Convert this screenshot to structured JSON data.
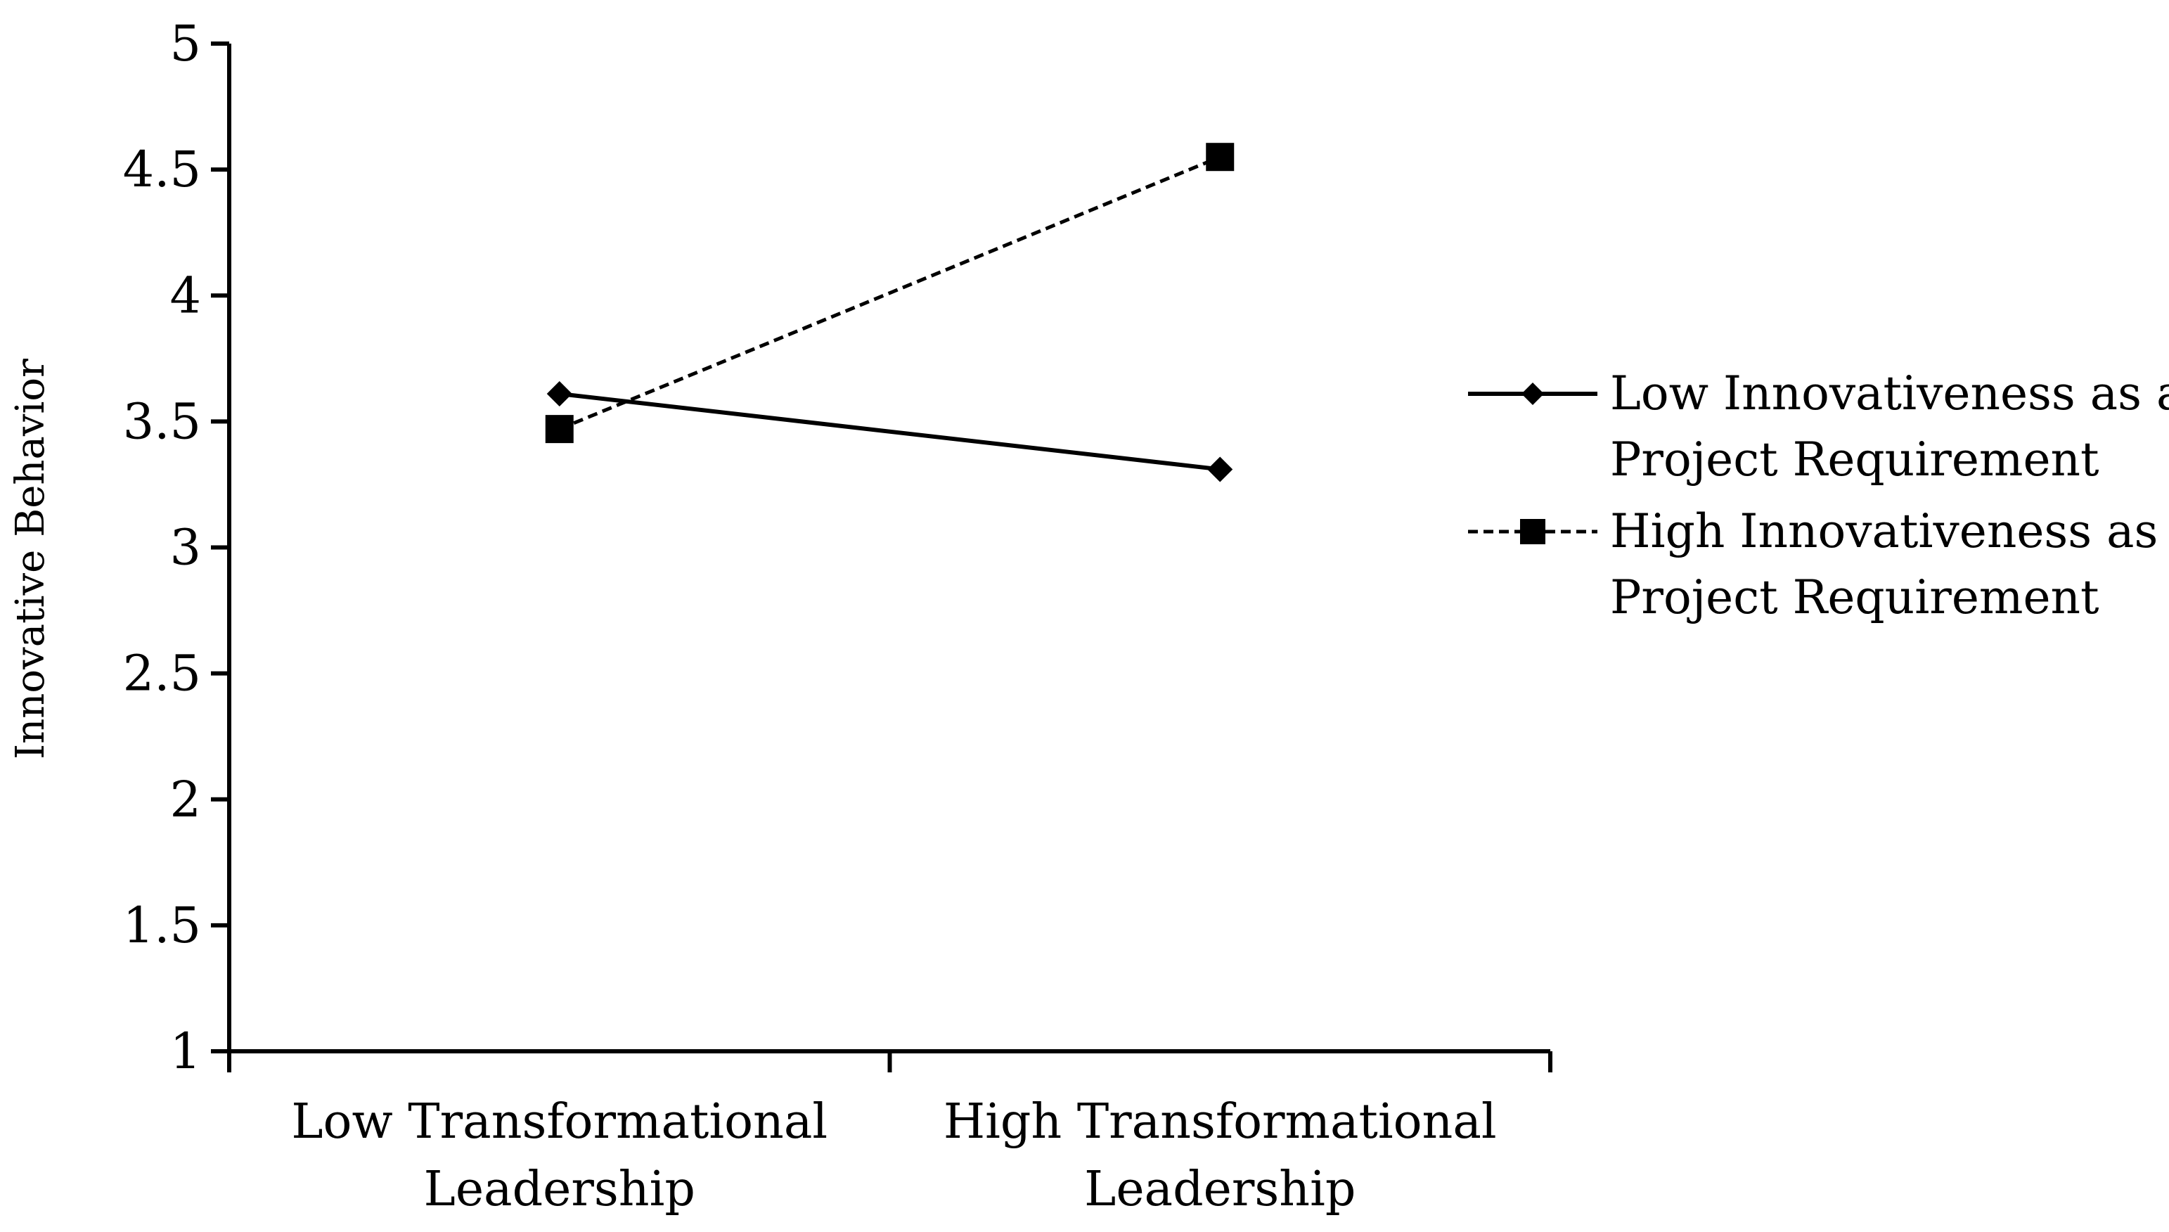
{
  "chart_data": {
    "type": "line",
    "title": "",
    "xlabel": "",
    "ylabel": "Innovative Behavior",
    "ylim": [
      1,
      5
    ],
    "yticks": [
      "1",
      "1.5",
      "2",
      "2.5",
      "3",
      "3.5",
      "4",
      "4.5",
      "5"
    ],
    "categories": [
      [
        "Low Transformational",
        "Leadership"
      ],
      [
        "High Transformational",
        "Leadership"
      ]
    ],
    "grid": false,
    "legend_position": "right",
    "series": [
      {
        "name": [
          "Low Innovativeness as a",
          "Project Requirement"
        ],
        "values": [
          3.61,
          3.31
        ],
        "line_style": "solid",
        "marker": "diamond",
        "color": "#000000"
      },
      {
        "name": [
          "High Innovativeness as a",
          "Project Requirement"
        ],
        "values": [
          3.47,
          4.55
        ],
        "line_style": "dashed",
        "marker": "square",
        "color": "#000000"
      }
    ]
  }
}
